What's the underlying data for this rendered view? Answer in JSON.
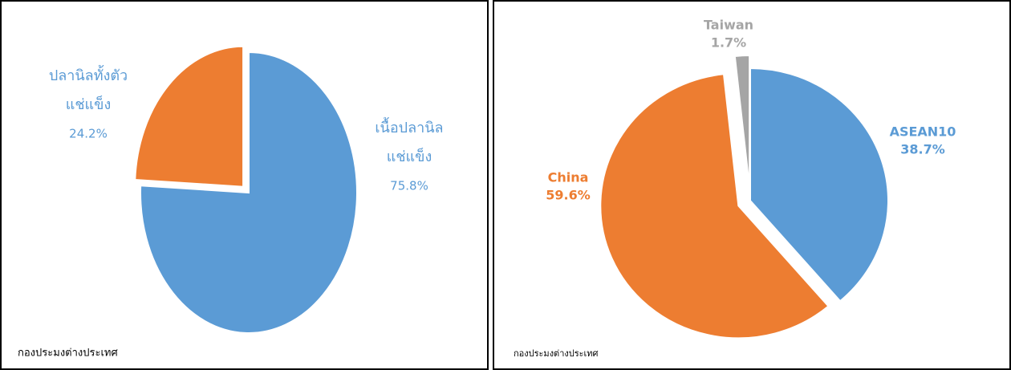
{
  "chart_data": [
    {
      "type": "pie",
      "categories": [
        [
          "เนื้อปลานิล",
          "แช่แข็ง"
        ],
        [
          "ปลานิลทั้งตัว",
          "แช่แข็ง"
        ]
      ],
      "values": [
        75.8,
        24.2
      ],
      "value_labels": [
        "75.8%",
        "24.2%"
      ],
      "colors": [
        "#5b9bd5",
        "#ed7d31"
      ],
      "exploded": [
        false,
        true
      ],
      "label_color": "#5b9bd5",
      "source": "กองประมงต่างประเทศ"
    },
    {
      "type": "pie",
      "categories": [
        [
          "ASEAN10"
        ],
        [
          "China"
        ],
        [
          "Taiwan"
        ]
      ],
      "values": [
        38.7,
        59.6,
        1.7
      ],
      "value_labels": [
        "38.7%",
        "59.6%",
        "1.7%"
      ],
      "colors": [
        "#5b9bd5",
        "#ed7d31",
        "#a5a5a5"
      ],
      "exploded": [
        false,
        true,
        true
      ],
      "source": "กองประมงต่างประเทศ"
    }
  ]
}
